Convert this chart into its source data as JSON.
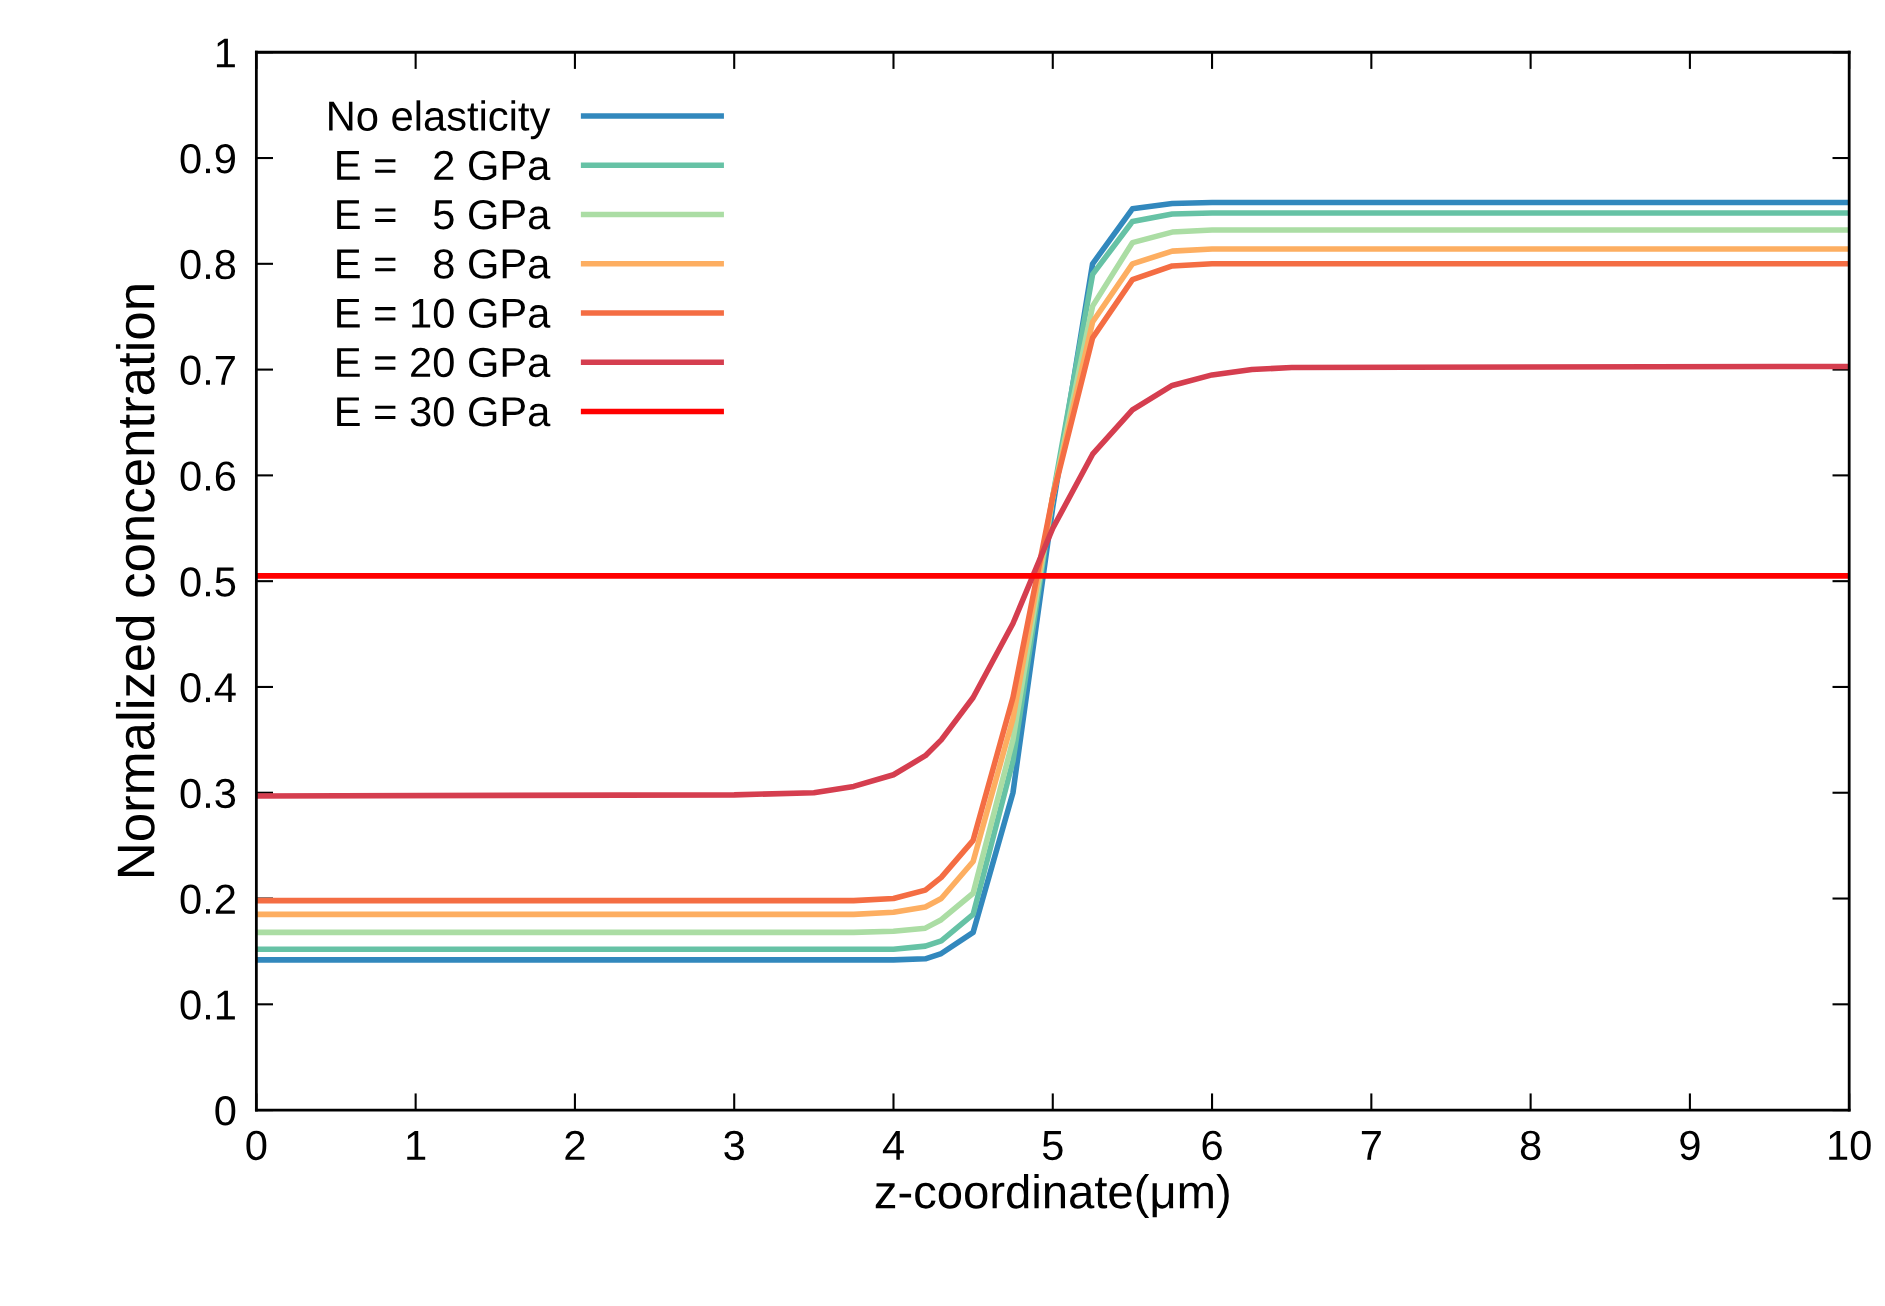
{
  "chart_data": {
    "type": "line",
    "xlabel": "z-coordinate(μm)",
    "ylabel": "Normalized concentration",
    "x": [
      0,
      3,
      3.5,
      3.75,
      4,
      4.2,
      4.3,
      4.5,
      4.75,
      5,
      5.25,
      5.5,
      5.75,
      6,
      6.25,
      6.5,
      10
    ],
    "series": [
      {
        "name": "No elasticity",
        "color": "#3288bd",
        "values": [
          0.142,
          0.142,
          0.142,
          0.142,
          0.142,
          0.143,
          0.148,
          0.168,
          0.3,
          0.57,
          0.8,
          0.852,
          0.857,
          0.858,
          0.858,
          0.858,
          0.858
        ]
      },
      {
        "name": "E =   2 GPa",
        "color": "#66c2a5",
        "values": [
          0.152,
          0.152,
          0.152,
          0.152,
          0.152,
          0.155,
          0.16,
          0.185,
          0.33,
          0.58,
          0.79,
          0.84,
          0.847,
          0.848,
          0.848,
          0.848,
          0.848
        ]
      },
      {
        "name": "E =   5 GPa",
        "color": "#abdda4",
        "values": [
          0.168,
          0.168,
          0.168,
          0.168,
          0.169,
          0.172,
          0.18,
          0.205,
          0.35,
          0.58,
          0.76,
          0.82,
          0.83,
          0.832,
          0.832,
          0.832,
          0.832
        ]
      },
      {
        "name": "E =   8 GPa",
        "color": "#fdae61",
        "values": [
          0.185,
          0.185,
          0.185,
          0.185,
          0.187,
          0.192,
          0.2,
          0.235,
          0.37,
          0.58,
          0.745,
          0.8,
          0.812,
          0.814,
          0.814,
          0.814,
          0.814
        ]
      },
      {
        "name": "E = 10 GPa",
        "color": "#f46d43",
        "values": [
          0.198,
          0.198,
          0.198,
          0.198,
          0.2,
          0.208,
          0.22,
          0.255,
          0.39,
          0.58,
          0.73,
          0.785,
          0.798,
          0.8,
          0.8,
          0.8,
          0.8
        ]
      },
      {
        "name": "E = 20 GPa",
        "color": "#d53e4f",
        "values": [
          0.297,
          0.298,
          0.3,
          0.306,
          0.317,
          0.335,
          0.35,
          0.39,
          0.46,
          0.55,
          0.62,
          0.662,
          0.685,
          0.695,
          0.7,
          0.702,
          0.703
        ]
      },
      {
        "name": "E = 30 GPa",
        "color": "#ff0000",
        "x": [
          0,
          10
        ],
        "values": [
          0.505,
          0.505
        ]
      }
    ],
    "xlim": [
      0,
      10
    ],
    "ylim": [
      0,
      1
    ],
    "xticks": [
      0,
      1,
      2,
      3,
      4,
      5,
      6,
      7,
      8,
      9,
      10
    ],
    "yticks": [
      0,
      0.1,
      0.2,
      0.3,
      0.4,
      0.5,
      0.6,
      0.7,
      0.8,
      0.9,
      1
    ],
    "legend": "top left",
    "grid": false,
    "marker": "none",
    "line_style": "solid"
  }
}
